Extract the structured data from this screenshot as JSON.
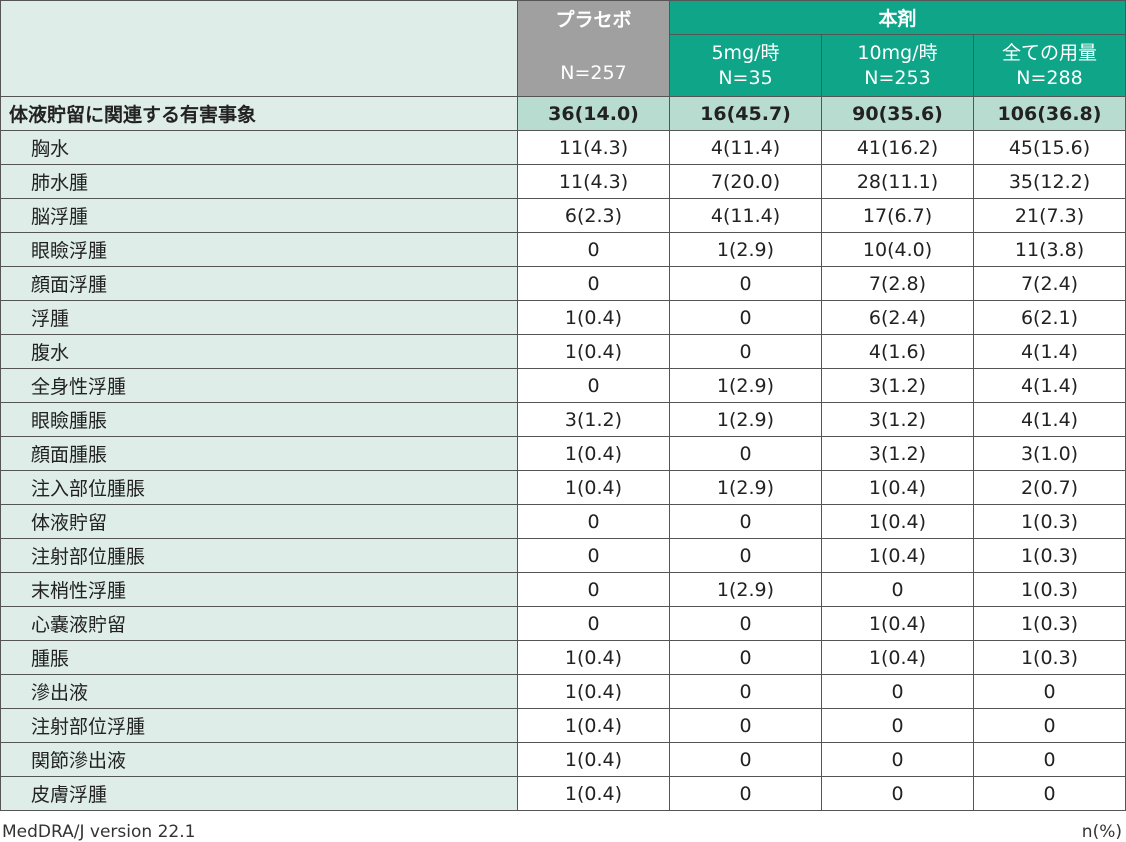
{
  "header": {
    "placebo": "プラセボ",
    "placebo_n": "N=257",
    "drug": "本剤",
    "cols": [
      {
        "dose": "5mg/時",
        "n": "N=35"
      },
      {
        "dose": "10mg/時",
        "n": "N=253"
      },
      {
        "dose": "全ての用量",
        "n": "N=288"
      }
    ]
  },
  "summary": {
    "label": "体液貯留に関連する有害事象",
    "values": [
      "36(14.0)",
      "16(45.7)",
      "90(35.6)",
      "106(36.8)"
    ]
  },
  "rows": [
    {
      "label": "胸水",
      "values": [
        "11(4.3)",
        "4(11.4)",
        "41(16.2)",
        "45(15.6)"
      ]
    },
    {
      "label": "肺水腫",
      "values": [
        "11(4.3)",
        "7(20.0)",
        "28(11.1)",
        "35(12.2)"
      ]
    },
    {
      "label": "脳浮腫",
      "values": [
        "6(2.3)",
        "4(11.4)",
        "17(6.7)",
        "21(7.3)"
      ]
    },
    {
      "label": "眼瞼浮腫",
      "values": [
        "0",
        "1(2.9)",
        "10(4.0)",
        "11(3.8)"
      ]
    },
    {
      "label": "顔面浮腫",
      "values": [
        "0",
        "0",
        "7(2.8)",
        "7(2.4)"
      ]
    },
    {
      "label": "浮腫",
      "values": [
        "1(0.4)",
        "0",
        "6(2.4)",
        "6(2.1)"
      ]
    },
    {
      "label": "腹水",
      "values": [
        "1(0.4)",
        "0",
        "4(1.6)",
        "4(1.4)"
      ]
    },
    {
      "label": "全身性浮腫",
      "values": [
        "0",
        "1(2.9)",
        "3(1.2)",
        "4(1.4)"
      ]
    },
    {
      "label": "眼瞼腫脹",
      "values": [
        "3(1.2)",
        "1(2.9)",
        "3(1.2)",
        "4(1.4)"
      ]
    },
    {
      "label": "顔面腫脹",
      "values": [
        "1(0.4)",
        "0",
        "3(1.2)",
        "3(1.0)"
      ]
    },
    {
      "label": "注入部位腫脹",
      "values": [
        "1(0.4)",
        "1(2.9)",
        "1(0.4)",
        "2(0.7)"
      ]
    },
    {
      "label": "体液貯留",
      "values": [
        "0",
        "0",
        "1(0.4)",
        "1(0.3)"
      ]
    },
    {
      "label": "注射部位腫脹",
      "values": [
        "0",
        "0",
        "1(0.4)",
        "1(0.3)"
      ]
    },
    {
      "label": "末梢性浮腫",
      "values": [
        "0",
        "1(2.9)",
        "0",
        "1(0.3)"
      ]
    },
    {
      "label": "心嚢液貯留",
      "values": [
        "0",
        "0",
        "1(0.4)",
        "1(0.3)"
      ]
    },
    {
      "label": "腫脹",
      "values": [
        "1(0.4)",
        "0",
        "1(0.4)",
        "1(0.3)"
      ]
    },
    {
      "label": "滲出液",
      "values": [
        "1(0.4)",
        "0",
        "0",
        "0"
      ]
    },
    {
      "label": "注射部位浮腫",
      "values": [
        "1(0.4)",
        "0",
        "0",
        "0"
      ]
    },
    {
      "label": "関節滲出液",
      "values": [
        "1(0.4)",
        "0",
        "0",
        "0"
      ]
    },
    {
      "label": "皮膚浮腫",
      "values": [
        "1(0.4)",
        "0",
        "0",
        "0"
      ]
    }
  ],
  "footer": {
    "left": "MedDRA/J version 22.1",
    "right": "n(%)"
  },
  "colors": {
    "teal": "#0ea589",
    "placebo": "#a0a0a0",
    "label_bg": "#deede8",
    "summary_bg": "#b9dcd1"
  }
}
